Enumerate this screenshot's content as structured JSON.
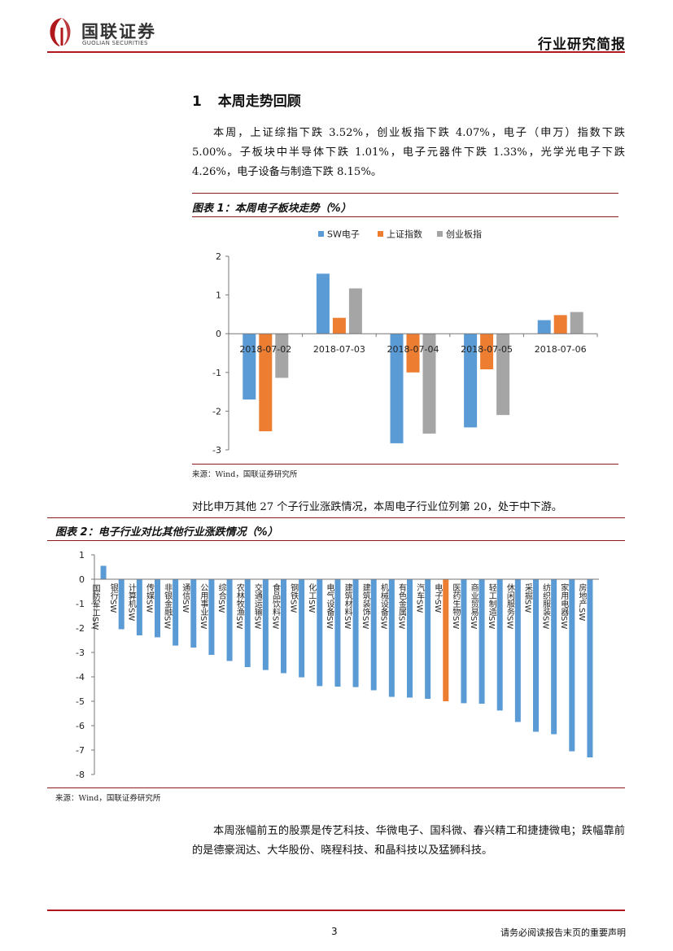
{
  "header": {
    "brand_cn": "国联证券",
    "brand_en": "GUOLIAN SECURITIES",
    "doc_type": "行业研究简报"
  },
  "section": {
    "number": "1",
    "title": "本周走势回顾",
    "paragraph": "本周，上证综指下跌 3.52%，创业板指下跌 4.07%，电子（申万）指数下跌 5.00%。子板块中半导体下跌 1.01%，电子元器件下跌 1.33%，光学光电子下跌 4.26%，电子设备与制造下跌 8.15%。"
  },
  "figure1": {
    "title": "图表 1：本周电子板块走势（%）",
    "source": "来源：Wind，国联证券研究所"
  },
  "between_text": "对比申万其他 27 个子行业涨跌情况，本周电子行业位列第 20，处于中下游。",
  "figure2": {
    "title": "图表 2：电子行业对比其他行业涨跌情况（%）",
    "source": "来源：Wind，国联证券研究所"
  },
  "closing_text": "本周涨幅前五的股票是传艺科技、华微电子、国科微、春兴精工和捷捷微电；跌幅靠前的是德豪润达、大华股份、晓程科技、和晶科技以及猛狮科技。",
  "footer": {
    "page_number": "3",
    "disclaimer": "请务必阅读报告末页的重要声明"
  },
  "colors": {
    "blue": "#5b9bd5",
    "orange": "#ed7d31",
    "gray": "#a5a5a5",
    "brand_red": "#b0181e"
  },
  "chart_data": [
    {
      "type": "bar",
      "title": "本周电子板块走势（%）",
      "categories": [
        "2018-07-02",
        "2018-07-03",
        "2018-07-04",
        "2018-07-05",
        "2018-07-06"
      ],
      "series": [
        {
          "name": "SW电子",
          "values": [
            -1.7,
            1.55,
            -2.83,
            -2.42,
            0.35
          ]
        },
        {
          "name": "上证指数",
          "values": [
            -2.52,
            0.41,
            -1.0,
            -0.92,
            0.48
          ]
        },
        {
          "name": "创业板指",
          "values": [
            -1.14,
            1.17,
            -2.58,
            -2.1,
            0.56
          ]
        }
      ],
      "ylim": [
        -3,
        2
      ],
      "yticks": [
        2,
        1,
        0,
        -1,
        -2,
        -3
      ],
      "legend": "top-center"
    },
    {
      "type": "bar",
      "title": "电子行业对比其他行业涨跌情况（%）",
      "categories": [
        "国防军工SW",
        "银行SW",
        "计算机SW",
        "传媒SW",
        "非银金融SW",
        "通信SW",
        "公用事业SW",
        "综合SW",
        "农林牧渔SW",
        "交通运输SW",
        "食品饮料SW",
        "钢铁SW",
        "化工SW",
        "电气设备SW",
        "建筑材料SW",
        "建筑装饰SW",
        "机械设备SW",
        "有色金属SW",
        "汽车SW",
        "电子SW",
        "医药生物SW",
        "商业贸易SW",
        "轻工制造SW",
        "休闲服务SW",
        "采掘SW",
        "纺织服装SW",
        "家用电器SW",
        "房地产SW"
      ],
      "values": [
        0.55,
        -2.05,
        -2.3,
        -2.38,
        -2.72,
        -2.8,
        -3.1,
        -3.35,
        -3.6,
        -3.72,
        -3.85,
        -4.02,
        -4.38,
        -4.4,
        -4.42,
        -4.55,
        -4.82,
        -4.85,
        -4.9,
        -5.0,
        -5.08,
        -5.1,
        -5.38,
        -5.85,
        -6.25,
        -6.35,
        -7.05,
        -7.3
      ],
      "highlight": "电子SW",
      "ylim": [
        -8,
        1
      ],
      "yticks": [
        1,
        0,
        -1,
        -2,
        -3,
        -4,
        -5,
        -6,
        -7,
        -8
      ]
    }
  ]
}
